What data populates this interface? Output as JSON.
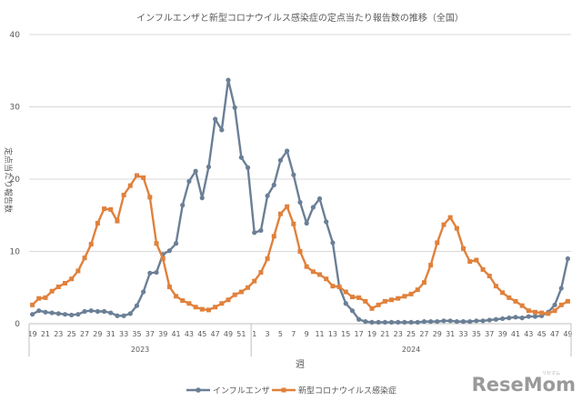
{
  "chart_data": {
    "type": "line",
    "title": "インフルエンザと新型コロナウイルス感染症の定点当たり報告数の推移（全国）",
    "xlabel": "週",
    "ylabel": "定点当たり報告数",
    "ylim": [
      0,
      40
    ],
    "yticks": [
      0,
      10,
      20,
      30,
      40
    ],
    "grid": true,
    "legend": "bottom",
    "x": [
      19,
      20,
      21,
      22,
      23,
      24,
      25,
      26,
      27,
      28,
      29,
      30,
      31,
      32,
      33,
      34,
      35,
      36,
      37,
      38,
      39,
      40,
      41,
      42,
      43,
      44,
      45,
      46,
      47,
      48,
      49,
      50,
      51,
      52,
      1,
      2,
      3,
      4,
      5,
      6,
      7,
      8,
      9,
      10,
      11,
      12,
      13,
      14,
      15,
      16,
      17,
      18,
      19,
      20,
      21,
      22,
      23,
      24,
      25,
      26,
      27,
      28,
      29,
      30,
      31,
      32,
      33,
      34,
      35,
      36,
      37,
      38,
      39,
      40,
      41,
      42,
      43,
      44,
      45,
      46,
      47,
      48,
      49
    ],
    "x_tick_labels": [
      "19",
      "21",
      "23",
      "25",
      "27",
      "29",
      "31",
      "33",
      "35",
      "37",
      "39",
      "41",
      "43",
      "45",
      "47",
      "49",
      "51",
      "1",
      "3",
      "5",
      "7",
      "9",
      "11",
      "13",
      "15",
      "17",
      "19",
      "21",
      "23",
      "25",
      "27",
      "29",
      "31",
      "33",
      "35",
      "37",
      "39",
      "41",
      "43",
      "45",
      "47",
      "49"
    ],
    "year_groups": [
      {
        "label": "2023",
        "start": 0,
        "end": 33
      },
      {
        "label": "2024",
        "start": 34,
        "end": 82
      }
    ],
    "series": [
      {
        "name": "インフルエンザ",
        "color": "#6b7f96",
        "marker": "circle",
        "values": [
          1.3,
          1.8,
          1.6,
          1.5,
          1.4,
          1.3,
          1.2,
          1.3,
          1.7,
          1.8,
          1.7,
          1.7,
          1.5,
          1.1,
          1.1,
          1.4,
          2.5,
          4.4,
          7.0,
          7.1,
          9.6,
          10.1,
          11.1,
          16.4,
          19.7,
          21.1,
          17.4,
          21.7,
          28.3,
          26.8,
          33.7,
          29.9,
          23.0,
          21.6,
          12.6,
          12.9,
          17.7,
          19.2,
          22.6,
          23.9,
          20.6,
          16.8,
          13.9,
          16.1,
          17.3,
          14.1,
          11.2,
          5.1,
          2.8,
          1.8,
          0.6,
          0.3,
          0.2,
          0.2,
          0.2,
          0.2,
          0.2,
          0.2,
          0.2,
          0.2,
          0.3,
          0.3,
          0.3,
          0.4,
          0.4,
          0.3,
          0.3,
          0.3,
          0.4,
          0.4,
          0.5,
          0.6,
          0.7,
          0.8,
          0.9,
          0.8,
          1.0,
          1.0,
          1.1,
          1.6,
          2.6,
          4.9,
          9.0
        ]
      },
      {
        "name": "新型コロナウイルス感染症",
        "color": "#e0813c",
        "marker": "square",
        "values": [
          2.6,
          3.5,
          3.6,
          4.5,
          5.1,
          5.6,
          6.2,
          7.3,
          9.1,
          11.0,
          13.9,
          15.9,
          15.8,
          14.2,
          17.8,
          19.1,
          20.5,
          20.2,
          17.5,
          11.1,
          9.0,
          5.1,
          3.8,
          3.2,
          2.8,
          2.3,
          2.0,
          1.9,
          2.3,
          2.8,
          3.3,
          4.0,
          4.4,
          5.0,
          5.9,
          7.1,
          9.0,
          12.1,
          15.2,
          16.2,
          13.8,
          10.0,
          7.9,
          7.2,
          6.8,
          6.2,
          5.2,
          5.1,
          4.4,
          3.7,
          3.6,
          3.1,
          2.1,
          2.6,
          3.1,
          3.3,
          3.5,
          3.8,
          4.1,
          4.7,
          5.7,
          8.1,
          11.2,
          13.7,
          14.7,
          13.2,
          10.4,
          8.6,
          8.8,
          7.5,
          6.6,
          5.2,
          4.3,
          3.6,
          3.1,
          2.5,
          1.8,
          1.6,
          1.5,
          1.4,
          1.8,
          2.6,
          3.1
        ]
      }
    ]
  },
  "watermark": {
    "brand": "ReseMom",
    "sub": "リセマム"
  }
}
